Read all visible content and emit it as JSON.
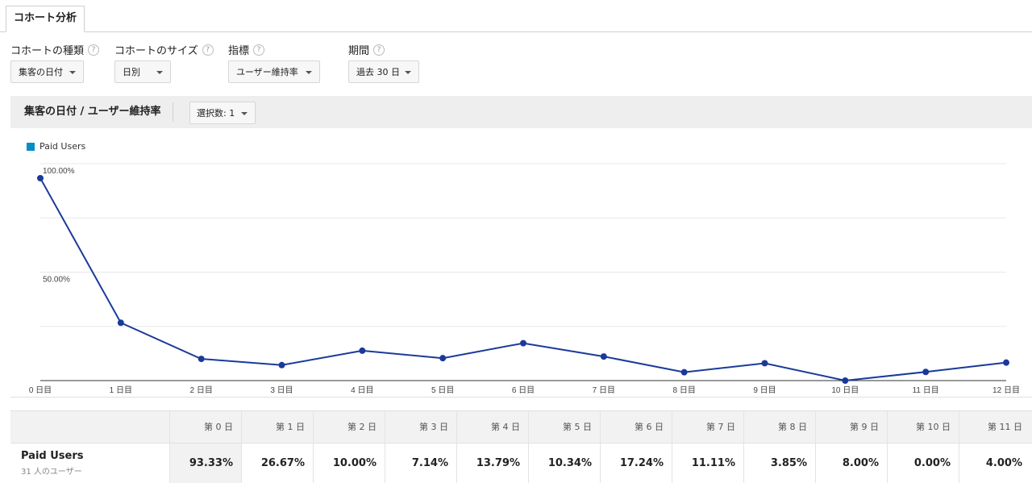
{
  "tab": {
    "label": "コホート分析"
  },
  "controls": [
    {
      "label": "コホートの種類",
      "value": "集客の日付"
    },
    {
      "label": "コホートのサイズ",
      "value": "日別"
    },
    {
      "label": "指標",
      "value": "ユーザー維持率"
    },
    {
      "label": "期間",
      "value": "過去 30 日"
    }
  ],
  "help_icon": "question-circle-icon",
  "chart_header": {
    "title": "集客の日付 / ユーザー維持率",
    "selection": "選択数: 1"
  },
  "chart_data": {
    "type": "line",
    "x": [
      "0 日目",
      "1 日目",
      "2 日目",
      "3 日目",
      "4 日目",
      "5 日目",
      "6 日目",
      "7 日目",
      "8 日目",
      "9 日目",
      "10 日目",
      "11 日目",
      "12 日目"
    ],
    "series": [
      {
        "name": "Paid Users",
        "values": [
          93.33,
          26.67,
          10.0,
          7.14,
          13.79,
          10.34,
          17.24,
          11.11,
          3.85,
          8.0,
          0.0,
          4.0,
          8.3
        ]
      }
    ],
    "y_ticks": [
      "100.00%",
      "50.00%"
    ],
    "ylim": [
      0,
      100
    ],
    "legend": "top-left",
    "grid": true,
    "colors": {
      "line": "#1a3a9a",
      "legend": "#058dc7"
    }
  },
  "table": {
    "headers": [
      "第 0 日",
      "第 1 日",
      "第 2 日",
      "第 3 日",
      "第 4 日",
      "第 5 日",
      "第 6 日",
      "第 7 日",
      "第 8 日",
      "第 9 日",
      "第 10 日",
      "第 11 日"
    ],
    "row": {
      "name": "Paid Users",
      "subtitle": "31 人のユーザー",
      "values": [
        "93.33%",
        "26.67%",
        "10.00%",
        "7.14%",
        "13.79%",
        "10.34%",
        "17.24%",
        "11.11%",
        "3.85%",
        "8.00%",
        "0.00%",
        "4.00%"
      ]
    }
  }
}
